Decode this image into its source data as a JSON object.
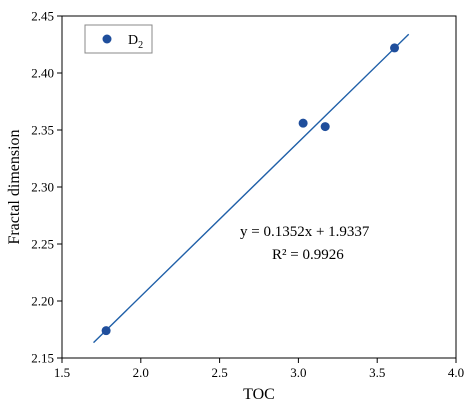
{
  "chart_data": {
    "type": "scatter",
    "title": "",
    "xlabel": "TOC",
    "ylabel": "Fractal dimension",
    "xlim": [
      1.5,
      4.0
    ],
    "ylim": [
      2.15,
      2.45
    ],
    "xticks": [
      "1.5",
      "2.0",
      "2.5",
      "3.0",
      "3.5",
      "4.0"
    ],
    "yticks": [
      "2.15",
      "2.20",
      "2.25",
      "2.30",
      "2.35",
      "2.40",
      "2.45"
    ],
    "grid": false,
    "legend_position": "top-left",
    "series": [
      {
        "name": "D",
        "name_subscript": "2",
        "color": "#1f4e9c",
        "x": [
          1.78,
          3.03,
          3.17,
          3.61
        ],
        "y": [
          2.174,
          2.356,
          2.353,
          2.422
        ]
      }
    ],
    "fit_line": {
      "slope": 0.1352,
      "intercept": 1.9337,
      "x_range": [
        1.7,
        3.7
      ],
      "color": "#1f5fa8"
    },
    "annotations": {
      "equation": "y = 0.1352x + 1.9337",
      "r_squared": "R² = 0.9926"
    }
  }
}
